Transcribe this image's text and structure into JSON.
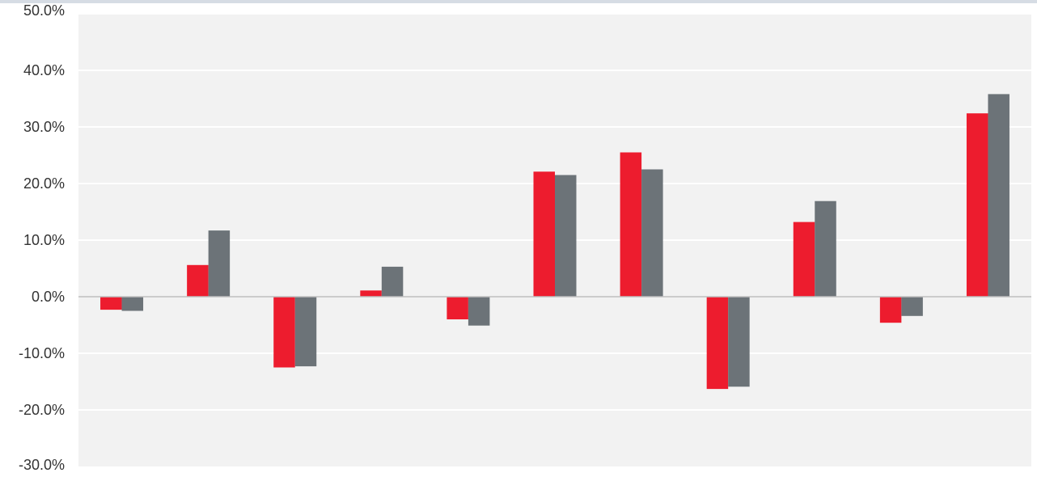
{
  "chart_data": {
    "type": "bar",
    "title": "",
    "xlabel": "",
    "ylabel": "",
    "categories": [
      "",
      "",
      "",
      "",
      "",
      "",
      "",
      "",
      "",
      "",
      ""
    ],
    "series": [
      {
        "color": "#ed1c2e",
        "values": [
          -2.3,
          5.6,
          -12.5,
          1.1,
          -4.0,
          22.1,
          25.5,
          -16.3,
          13.2,
          -4.6,
          32.4
        ]
      },
      {
        "color": "#6c7378",
        "values": [
          -2.5,
          11.7,
          -12.3,
          5.3,
          -5.1,
          21.5,
          22.5,
          -15.9,
          16.9,
          -3.4,
          35.8
        ]
      }
    ],
    "ylim": [
      -30,
      50
    ],
    "yticks": [
      "50.0%",
      "40.0%",
      "30.0%",
      "20.0%",
      "10.0%",
      "0.0%",
      "-10.0%",
      "-20.0%",
      "-30.0%"
    ],
    "ytick_values": [
      50,
      40,
      30,
      20,
      10,
      0,
      -10,
      -20,
      -30
    ],
    "grid": true,
    "legend": "none",
    "colors": {
      "plot_background": "#f2f2f2",
      "gridline": "#ffffff",
      "axis": "#bfbfbf",
      "top_border": "#d6dce4"
    }
  }
}
